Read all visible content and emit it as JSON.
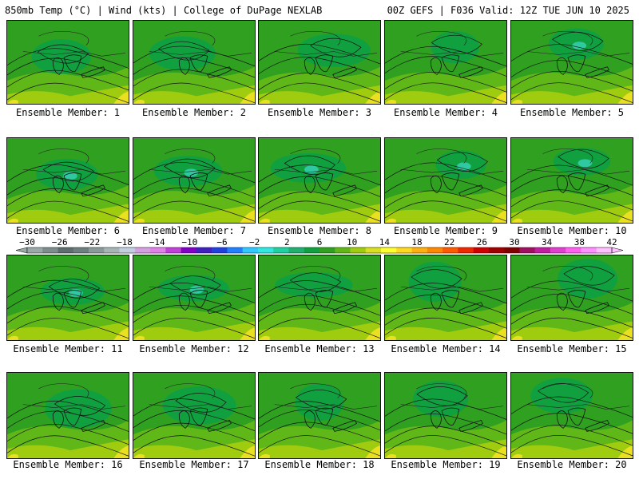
{
  "header": {
    "left": "850mb Temp (°C) | Wind (kts) | College of DuPage NEXLAB",
    "right": "00Z GEFS | F036 Valid: 12Z TUE JUN 10 2025"
  },
  "panels": [
    {
      "label": "Ensemble Member: 1"
    },
    {
      "label": "Ensemble Member: 2"
    },
    {
      "label": "Ensemble Member: 3"
    },
    {
      "label": "Ensemble Member: 4"
    },
    {
      "label": "Ensemble Member: 5"
    },
    {
      "label": "Ensemble Member: 6"
    },
    {
      "label": "Ensemble Member: 7"
    },
    {
      "label": "Ensemble Member: 8"
    },
    {
      "label": "Ensemble Member: 9"
    },
    {
      "label": "Ensemble Member: 10"
    },
    {
      "label": "Ensemble Member: 11"
    },
    {
      "label": "Ensemble Member: 12"
    },
    {
      "label": "Ensemble Member: 13"
    },
    {
      "label": "Ensemble Member: 14"
    },
    {
      "label": "Ensemble Member: 15"
    },
    {
      "label": "Ensemble Member: 16"
    },
    {
      "label": "Ensemble Member: 17"
    },
    {
      "label": "Ensemble Member: 18"
    },
    {
      "label": "Ensemble Member: 19"
    },
    {
      "label": "Ensemble Member: 20"
    }
  ],
  "colorbar": {
    "labels": [
      "−30",
      "−26",
      "−22",
      "−18",
      "−14",
      "−10",
      "−6",
      "−2",
      "2",
      "6",
      "10",
      "14",
      "18",
      "22",
      "26",
      "30",
      "34",
      "38",
      "42"
    ],
    "colors": [
      "#9aa8a8",
      "#7d8c8c",
      "#5e6e6e",
      "#6e7f7f",
      "#8a9a9a",
      "#a7b5b5",
      "#c3cfe0",
      "#d4a0e0",
      "#e080e8",
      "#c040d8",
      "#8000c8",
      "#4020c0",
      "#2040e0",
      "#2080ff",
      "#30c8ff",
      "#30e8e0",
      "#20d0a0",
      "#20b070",
      "#10a040",
      "#30a020",
      "#60b818",
      "#a0cc10",
      "#d8e020",
      "#ffff30",
      "#ffd820",
      "#ffb010",
      "#ff8800",
      "#ff5a00",
      "#f02800",
      "#d00000",
      "#a00000",
      "#800000",
      "#a01060",
      "#c020a0",
      "#e040d0",
      "#ff60f0",
      "#ff90ff",
      "#ffc0ff"
    ]
  }
}
